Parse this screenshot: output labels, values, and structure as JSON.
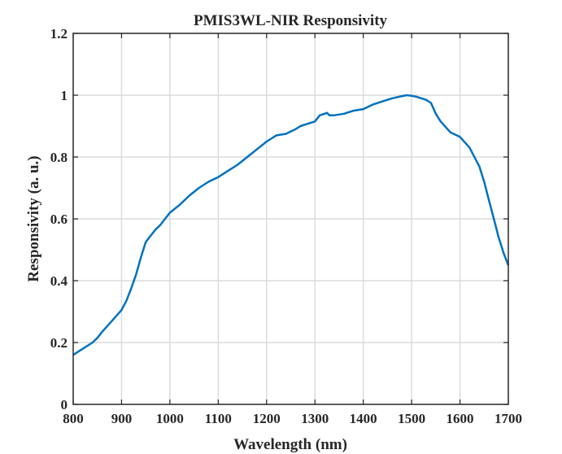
{
  "chart_data": {
    "type": "line",
    "title": "PMIS3WL-NIR Responsivity",
    "xlabel": "Wavelength (nm)",
    "ylabel": "Responsivity (a. u.)",
    "xlim": [
      800,
      1700
    ],
    "ylim": [
      0,
      1.2
    ],
    "xticks": [
      800,
      900,
      1000,
      1100,
      1200,
      1300,
      1400,
      1500,
      1600,
      1700
    ],
    "yticks": [
      0,
      0.2,
      0.4,
      0.6,
      0.8,
      1,
      1.2
    ],
    "xtick_labels": [
      "800",
      "900",
      "1000",
      "1100",
      "1200",
      "1300",
      "1400",
      "1500",
      "1600",
      "1700"
    ],
    "ytick_labels": [
      "0",
      "0.2",
      "0.4",
      "0.6",
      "0.8",
      "1",
      "1.2"
    ],
    "grid": true,
    "color": "#0072BD",
    "series": [
      {
        "x": [
          800,
          820,
          840,
          850,
          860,
          880,
          900,
          910,
          920,
          930,
          940,
          950,
          955,
          960,
          970,
          980,
          1000,
          1020,
          1040,
          1060,
          1080,
          1100,
          1120,
          1140,
          1160,
          1180,
          1200,
          1220,
          1240,
          1260,
          1270,
          1280,
          1290,
          1300,
          1310,
          1320,
          1325,
          1330,
          1340,
          1360,
          1380,
          1400,
          1420,
          1440,
          1460,
          1480,
          1490,
          1500,
          1510,
          1520,
          1530,
          1540,
          1550,
          1560,
          1580,
          1600,
          1620,
          1640,
          1650,
          1660,
          1670,
          1680,
          1690,
          1700
        ],
        "y": [
          0.16,
          0.18,
          0.2,
          0.215,
          0.235,
          0.27,
          0.305,
          0.335,
          0.375,
          0.42,
          0.475,
          0.525,
          0.535,
          0.545,
          0.565,
          0.58,
          0.62,
          0.645,
          0.675,
          0.7,
          0.72,
          0.735,
          0.755,
          0.775,
          0.8,
          0.825,
          0.85,
          0.87,
          0.875,
          0.89,
          0.9,
          0.905,
          0.91,
          0.915,
          0.935,
          0.94,
          0.943,
          0.935,
          0.935,
          0.94,
          0.95,
          0.955,
          0.97,
          0.98,
          0.99,
          0.997,
          1.0,
          0.998,
          0.995,
          0.99,
          0.985,
          0.975,
          0.94,
          0.915,
          0.88,
          0.865,
          0.83,
          0.77,
          0.72,
          0.66,
          0.6,
          0.54,
          0.49,
          0.45
        ]
      }
    ]
  }
}
